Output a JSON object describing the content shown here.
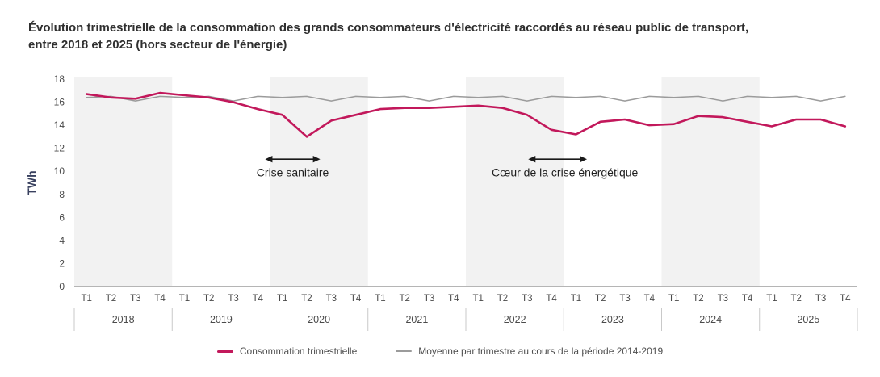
{
  "title": {
    "line1": "Évolution trimestrielle de la consommation des grands consommateurs d'électricité raccordés au réseau public de transport,",
    "line2": "entre 2018 et 2025 (hors secteur de l'énergie)"
  },
  "y_axis": {
    "label": "TWh",
    "ticks": [
      0,
      2,
      4,
      6,
      8,
      10,
      12,
      14,
      16,
      18
    ]
  },
  "x_axis": {
    "quarters": [
      "T1",
      "T2",
      "T3",
      "T4"
    ],
    "years": [
      "2018",
      "2019",
      "2020",
      "2021",
      "2022",
      "2023",
      "2024",
      "2025"
    ]
  },
  "chart_data": {
    "type": "line",
    "x": [
      "2018-T1",
      "2018-T2",
      "2018-T3",
      "2018-T4",
      "2019-T1",
      "2019-T2",
      "2019-T3",
      "2019-T4",
      "2020-T1",
      "2020-T2",
      "2020-T3",
      "2020-T4",
      "2021-T1",
      "2021-T2",
      "2021-T3",
      "2021-T4",
      "2022-T1",
      "2022-T2",
      "2022-T3",
      "2022-T4",
      "2023-T1",
      "2023-T2",
      "2023-T3",
      "2023-T4",
      "2024-T1",
      "2024-T2",
      "2024-T3",
      "2024-T4",
      "2025-T1",
      "2025-T2",
      "2025-T3",
      "2025-T4"
    ],
    "series": [
      {
        "name": "Consommation trimestrielle",
        "color": "#c2185b",
        "stroke_width": 2.6,
        "values": [
          16.7,
          16.4,
          16.3,
          16.8,
          16.6,
          16.4,
          16.0,
          15.4,
          14.9,
          13.0,
          14.4,
          14.9,
          15.4,
          15.5,
          15.5,
          15.6,
          15.7,
          15.5,
          14.9,
          13.6,
          13.2,
          14.3,
          14.5,
          14.0,
          14.1,
          14.8,
          14.7,
          14.3,
          13.9,
          14.5,
          14.5,
          13.9
        ]
      },
      {
        "name": "Moyenne par trimestre au cours de la période 2014-2019",
        "color": "#9b9b9b",
        "stroke_width": 1.5,
        "values": [
          16.4,
          16.5,
          16.1,
          16.5,
          16.4,
          16.5,
          16.1,
          16.5,
          16.4,
          16.5,
          16.1,
          16.5,
          16.4,
          16.5,
          16.1,
          16.5,
          16.4,
          16.5,
          16.1,
          16.5,
          16.4,
          16.5,
          16.1,
          16.5,
          16.4,
          16.5,
          16.1,
          16.5,
          16.4,
          16.5,
          16.1,
          16.5
        ]
      }
    ],
    "ylim": [
      0,
      18
    ],
    "ylabel": "TWh",
    "grid": false,
    "legend_position": "bottom",
    "shaded_year_indices": [
      0,
      2,
      4,
      6
    ],
    "annotations": [
      {
        "label": "Crise sanitaire",
        "arrow_start_q": 7.3,
        "arrow_end_q": 9.55,
        "arrow_twh": 11.05,
        "label_twh": 9.55,
        "label_dx": 0
      },
      {
        "label": "Cœur de la crise énergétique",
        "arrow_start_q": 18.05,
        "arrow_end_q": 20.45,
        "arrow_twh": 11.05,
        "label_twh": 9.55,
        "label_dx": 9
      }
    ]
  },
  "legend": {
    "items": [
      {
        "label": "Consommation trimestrielle",
        "color": "#c2185b"
      },
      {
        "label": "Moyenne par trimestre au cours de la période 2014-2019",
        "color": "#9b9b9b"
      }
    ]
  },
  "colors": {
    "band": "#f2f2f2",
    "axis_line": "#b5b5b5",
    "tick_text": "#4a4a4a",
    "year_divider": "#c9c9c9",
    "ylabel_text": "#39415f",
    "annotation": "#1a1a1a",
    "annotation_text": "#1f1f1f"
  }
}
